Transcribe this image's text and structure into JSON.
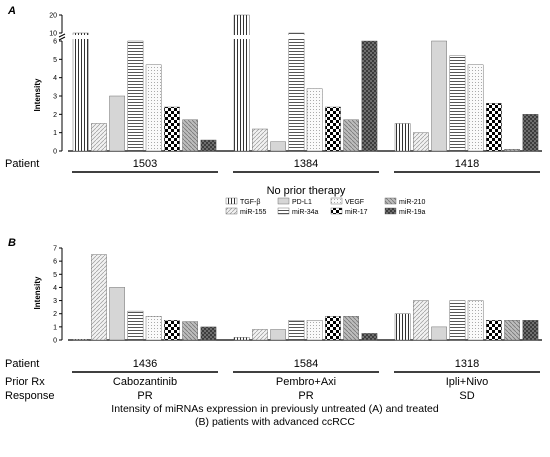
{
  "chart_data": [
    {
      "type": "bar",
      "panel_label": "A",
      "ylabel": "Intensity",
      "y_ticks_lower": [
        0,
        1,
        2,
        3,
        4,
        5,
        6
      ],
      "y_ticks_upper": [
        10,
        20
      ],
      "y_axis_break": [
        6,
        10
      ],
      "groups_label": "Patient",
      "categories": [
        "1503",
        "1384",
        "1418"
      ],
      "series": [
        {
          "name": "TGF-β",
          "values": [
            10,
            20,
            1.5
          ]
        },
        {
          "name": "miR-155",
          "values": [
            1.5,
            1.2,
            1.0
          ]
        },
        {
          "name": "PD-L1",
          "values": [
            3.0,
            0.5,
            6.0
          ]
        },
        {
          "name": "miR-34a",
          "values": [
            6.0,
            10,
            5.2
          ]
        },
        {
          "name": "VEGF",
          "values": [
            4.7,
            3.4,
            4.7
          ]
        },
        {
          "name": "miR-17",
          "values": [
            2.4,
            2.4,
            2.6
          ]
        },
        {
          "name": "miR-210",
          "values": [
            1.7,
            1.7,
            0.1
          ]
        },
        {
          "name": "miR-19a",
          "values": [
            0.6,
            6.0,
            2.0
          ]
        }
      ],
      "subtitle": "No prior therapy"
    },
    {
      "type": "bar",
      "panel_label": "B",
      "ylabel": "Intensity",
      "ylim": [
        0,
        7
      ],
      "y_ticks": [
        0,
        1,
        2,
        3,
        4,
        5,
        6,
        7
      ],
      "groups_label": "Patient",
      "categories": [
        "1436",
        "1584",
        "1318"
      ],
      "series": [
        {
          "name": "TGF-β",
          "values": [
            0.05,
            0.2,
            2.0
          ]
        },
        {
          "name": "miR-155",
          "values": [
            6.5,
            0.8,
            3.0
          ]
        },
        {
          "name": "PD-L1",
          "values": [
            4.0,
            0.8,
            1.0
          ]
        },
        {
          "name": "miR-34a",
          "values": [
            2.2,
            1.5,
            3.0
          ]
        },
        {
          "name": "VEGF",
          "values": [
            1.8,
            1.5,
            3.0
          ]
        },
        {
          "name": "miR-17",
          "values": [
            1.5,
            1.8,
            1.5
          ]
        },
        {
          "name": "miR-210",
          "values": [
            1.4,
            1.8,
            1.5
          ]
        },
        {
          "name": "miR-19a",
          "values": [
            1.0,
            0.5,
            1.5
          ]
        }
      ],
      "row_labels": [
        "Prior Rx",
        "Response"
      ],
      "prior_rx": [
        "Cabozantinib",
        "Pembro+Axi",
        "Ipli+Nivo"
      ],
      "response": [
        "PR",
        "PR",
        "SD"
      ]
    }
  ],
  "legend": {
    "rows": [
      [
        {
          "series": 0,
          "label": "TGF-β"
        },
        {
          "series": 2,
          "label": "PD-L1"
        },
        {
          "series": 4,
          "label": "VEGF"
        },
        {
          "series": 6,
          "label": "miR-210"
        }
      ],
      [
        {
          "series": 1,
          "label": "miR-155"
        },
        {
          "series": 3,
          "label": "miR-34a"
        },
        {
          "series": 5,
          "label": "miR-17"
        },
        {
          "series": 7,
          "label": "miR-19a"
        }
      ]
    ]
  },
  "caption": {
    "line1": "Intensity of miRNAs expression in previously untreated (A) and treated",
    "line2": "(B) patients with advanced ccRCC"
  }
}
